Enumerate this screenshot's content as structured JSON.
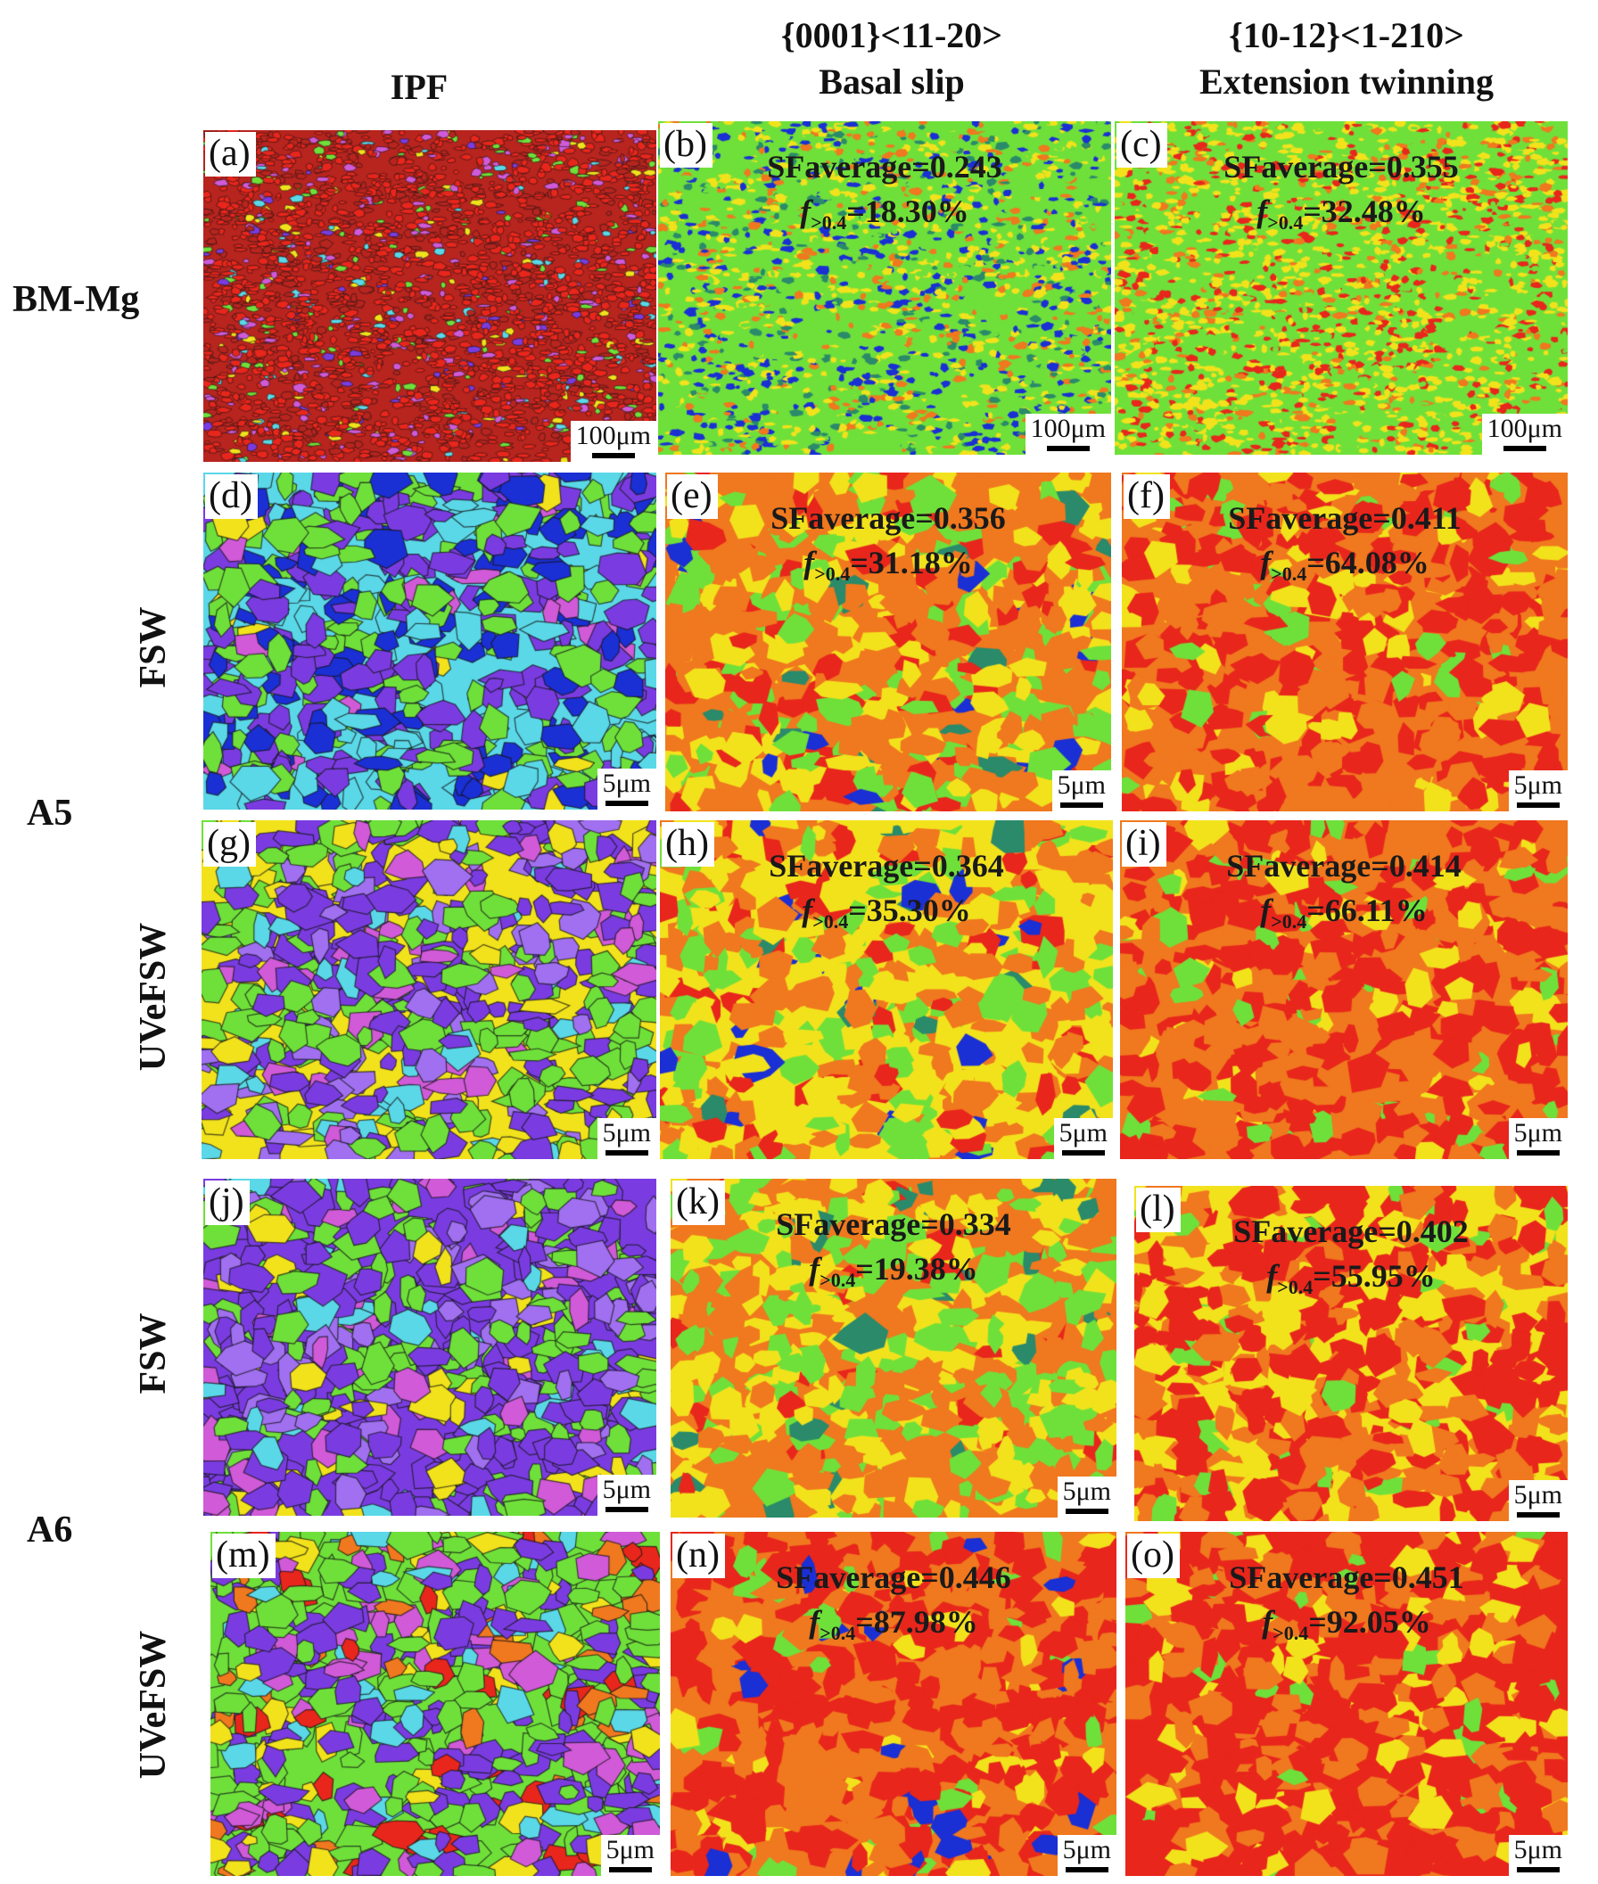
{
  "columns": {
    "ipf": "IPF",
    "basal_line1": "{0001}<11-20>",
    "basal_line2": "Basal slip",
    "twin_line1": "{10-12}<1-210>",
    "twin_line2": "Extension twinning"
  },
  "rows": {
    "bm": "BM-Mg",
    "a5": "A5",
    "a6": "A6",
    "a5_fsw": "FSW",
    "a5_uvefsw": "UVeFSW",
    "a6_fsw": "FSW",
    "a6_uvefsw": "UVeFSW"
  },
  "sf_prefix": "SFaverage=",
  "f_symbol": "f",
  "f_subscript": ">0.4",
  "f_equals": "=",
  "panels": {
    "a": {
      "label": "(a)",
      "scale": "100μm",
      "map": "ipf-fine"
    },
    "b": {
      "label": "(b)",
      "scale": "100μm",
      "map": "basal-fine",
      "sf": "0.243",
      "f": "18.30%"
    },
    "c": {
      "label": "(c)",
      "scale": "100μm",
      "map": "twin-fine",
      "sf": "0.355",
      "f": "32.48%"
    },
    "d": {
      "label": "(d)",
      "scale": "5μm",
      "map": "ipf-blue"
    },
    "e": {
      "label": "(e)",
      "scale": "5μm",
      "map": "basal-mix",
      "sf": "0.356",
      "f": "31.18%"
    },
    "f": {
      "label": "(f)",
      "scale": "5μm",
      "map": "twin-red",
      "sf": "0.411",
      "f": "64.08%"
    },
    "g": {
      "label": "(g)",
      "scale": "5μm",
      "map": "ipf-purple"
    },
    "h": {
      "label": "(h)",
      "scale": "5μm",
      "map": "basal-mix",
      "sf": "0.364",
      "f": "35.30%"
    },
    "i": {
      "label": "(i)",
      "scale": "5μm",
      "map": "twin-red",
      "sf": "0.414",
      "f": "66.11%"
    },
    "j": {
      "label": "(j)",
      "scale": "5μm",
      "map": "ipf-purple"
    },
    "k": {
      "label": "(k)",
      "scale": "5μm",
      "map": "basal-yellow",
      "sf": "0.334",
      "f": "19.38%"
    },
    "l": {
      "label": "(l)",
      "scale": "5μm",
      "map": "twin-red",
      "sf": "0.402",
      "f": "55.95%"
    },
    "m": {
      "label": "(m)",
      "scale": "5μm",
      "map": "ipf-mixed"
    },
    "n": {
      "label": "(n)",
      "scale": "5μm",
      "map": "basal-red",
      "sf": "0.446",
      "f": "87.98%"
    },
    "o": {
      "label": "(o)",
      "scale": "5μm",
      "map": "twin-red",
      "sf": "0.451",
      "f": "92.05%"
    }
  },
  "colors": {
    "red": "#e8261c",
    "orange": "#f0781e",
    "yellow": "#f2e21c",
    "green": "#6fe03a",
    "blue": "#1a2fd4",
    "purple": "#7a3ce0",
    "cyan": "#5ad8e8",
    "magenta": "#d05ad8"
  }
}
